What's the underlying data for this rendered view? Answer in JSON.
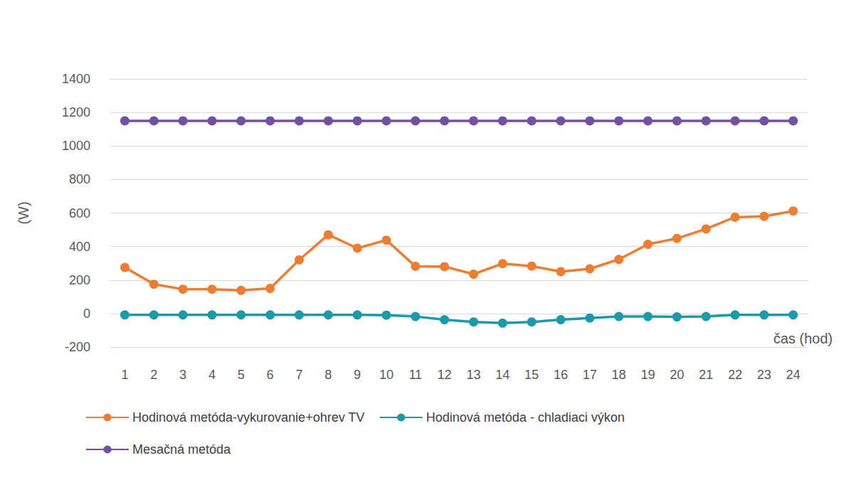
{
  "chart_data": {
    "type": "line",
    "categories": [
      "1",
      "2",
      "3",
      "4",
      "5",
      "6",
      "7",
      "8",
      "9",
      "10",
      "11",
      "12",
      "13",
      "14",
      "15",
      "16",
      "17",
      "18",
      "19",
      "20",
      "21",
      "22",
      "23",
      "24"
    ],
    "series": [
      {
        "name": "Hodinová metóda-vykurovanie+ohrev TV",
        "color": "#ed7d31",
        "values": [
          275,
          175,
          145,
          145,
          138,
          150,
          320,
          470,
          390,
          438,
          282,
          280,
          235,
          298,
          283,
          250,
          267,
          323,
          413,
          448,
          505,
          575,
          580,
          612
        ]
      },
      {
        "name": "Hodinová metóda - chladiaci výkon",
        "color": "#1b9aaa",
        "values": [
          -8,
          -8,
          -8,
          -8,
          -8,
          -8,
          -8,
          -8,
          -8,
          -10,
          -18,
          -37,
          -50,
          -57,
          -50,
          -37,
          -27,
          -18,
          -18,
          -20,
          -18,
          -8,
          -8,
          -8
        ]
      },
      {
        "name": "Mesačná metóda",
        "color": "#7152a0",
        "values": [
          1150,
          1150,
          1150,
          1150,
          1150,
          1150,
          1150,
          1150,
          1150,
          1150,
          1150,
          1150,
          1150,
          1150,
          1150,
          1150,
          1150,
          1150,
          1150,
          1150,
          1150,
          1150,
          1150,
          1150
        ]
      }
    ],
    "xlabel": "čas (hod)",
    "ylabel": "(W)",
    "ylim": [
      -200,
      1400
    ],
    "yticks": [
      -200,
      0,
      200,
      400,
      600,
      800,
      1000,
      1200,
      1400
    ],
    "grid": true,
    "legend": "bottom-left",
    "marker": "circle"
  }
}
